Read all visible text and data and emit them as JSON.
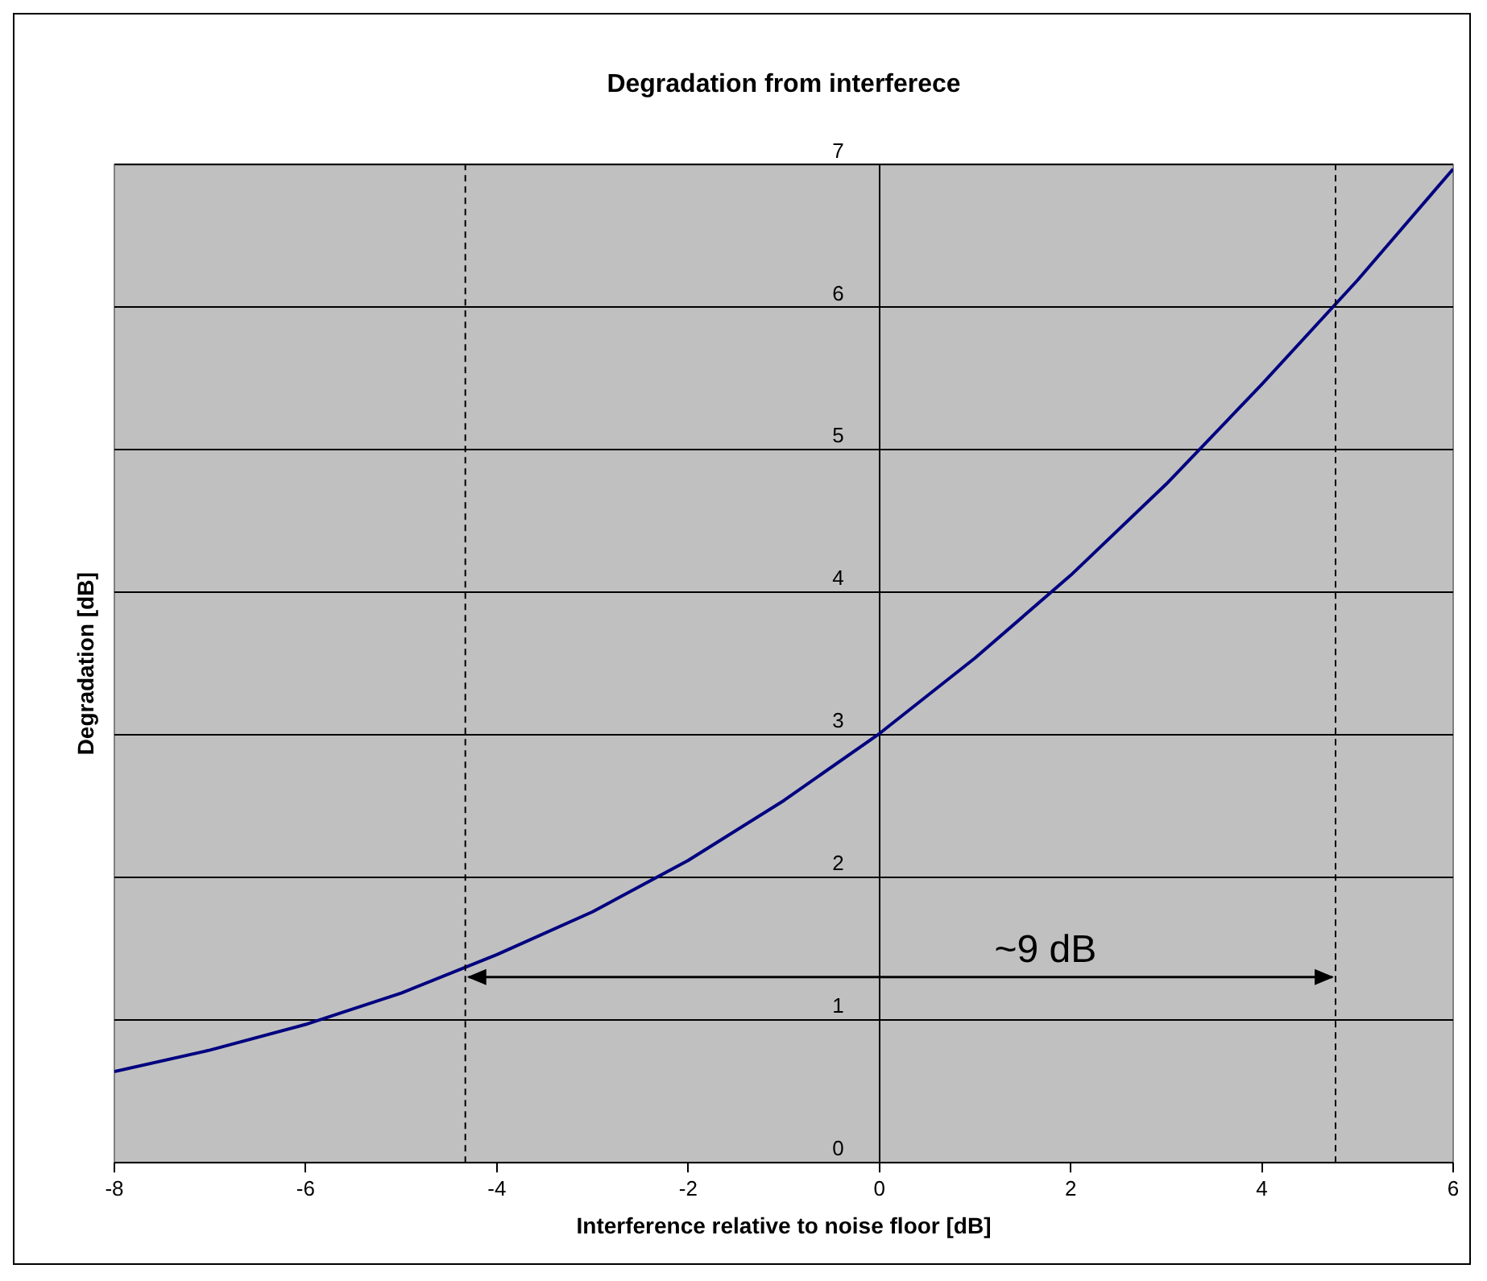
{
  "chart_data": {
    "type": "line",
    "title": "Degradation from interferece",
    "xlabel": "Interference relative to noise floor [dB]",
    "ylabel": "Degradation [dB]",
    "x": [
      -8,
      -7,
      -6,
      -5,
      -4,
      -3,
      -2,
      -1,
      0,
      1,
      2,
      3,
      4,
      5,
      6
    ],
    "series": [
      {
        "color": "#000080",
        "values": [
          0.64,
          0.79,
          0.97,
          1.19,
          1.46,
          1.76,
          2.12,
          2.54,
          3.01,
          3.54,
          4.12,
          4.76,
          5.46,
          6.19,
          6.97
        ]
      }
    ],
    "xlim": [
      -8,
      6
    ],
    "xticks": [
      -8,
      -6,
      -4,
      -2,
      0,
      2,
      4,
      6
    ],
    "ylim": [
      0,
      7
    ],
    "yticks": [
      0,
      1,
      2,
      3,
      4,
      5,
      6,
      7
    ],
    "grid": "y",
    "legend": false,
    "marker": "none",
    "line_style": "solid",
    "ref_lines": [
      {
        "axis": "x",
        "value": -4.33,
        "line_style": "dashed",
        "color": "#000000"
      },
      {
        "axis": "x",
        "value": 4.77,
        "line_style": "dashed",
        "color": "#000000"
      }
    ],
    "annotations": [
      "~9 dB"
    ]
  }
}
